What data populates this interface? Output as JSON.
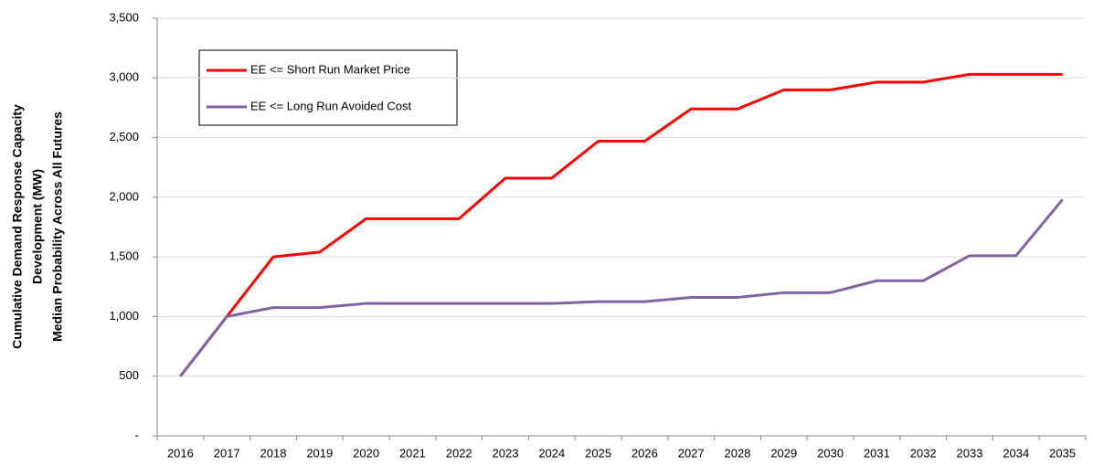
{
  "chart_data": {
    "type": "line",
    "y_label_lines": [
      "Cumulative  Demand Response Capacity",
      "Development (MW)",
      "Median Probability Across All Futures"
    ],
    "categories": [
      "2016",
      "2017",
      "2018",
      "2019",
      "2020",
      "2021",
      "2022",
      "2023",
      "2024",
      "2025",
      "2026",
      "2027",
      "2028",
      "2029",
      "2030",
      "2031",
      "2032",
      "2033",
      "2034",
      "2035"
    ],
    "series": [
      {
        "name": "EE <= Short Run Market Price",
        "color": "#ff0000",
        "values": [
          500,
          1000,
          1500,
          1540,
          1820,
          1820,
          1820,
          2160,
          2160,
          2470,
          2470,
          2740,
          2740,
          2900,
          2900,
          2965,
          2965,
          3030,
          3030,
          3030
        ]
      },
      {
        "name": "EE <= Long Run Avoided Cost",
        "color": "#8064a2",
        "values": [
          500,
          1000,
          1075,
          1075,
          1110,
          1110,
          1110,
          1110,
          1110,
          1125,
          1125,
          1160,
          1160,
          1200,
          1200,
          1300,
          1300,
          1510,
          1510,
          1980
        ]
      }
    ],
    "ylim": [
      0,
      3500
    ],
    "yticks": [
      {
        "value": 0,
        "label": "-"
      },
      500,
      {
        "value": 1000,
        "label": "1,000"
      },
      {
        "value": 1500,
        "label": "1,500"
      },
      {
        "value": 2000,
        "label": "2,000"
      },
      {
        "value": 2500,
        "label": "2,500"
      },
      {
        "value": 3000,
        "label": "3,000"
      },
      {
        "value": 3500,
        "label": "3,500"
      }
    ],
    "grid": true
  }
}
